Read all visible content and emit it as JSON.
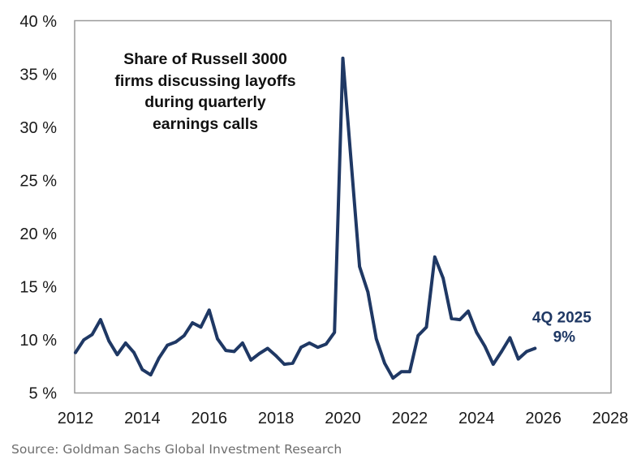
{
  "chart_data": {
    "type": "line",
    "title_lines": [
      "Share of Russell 3000",
      "firms discussing layoffs",
      "during quarterly",
      "earnings calls"
    ],
    "xlabel": "",
    "ylabel": "",
    "xlim": [
      2012,
      2028
    ],
    "ylim": [
      5,
      40
    ],
    "x_ticks": [
      "2012",
      "2014",
      "2016",
      "2018",
      "2020",
      "2022",
      "2024",
      "2026",
      "2028"
    ],
    "y_ticks": [
      "5 %",
      "10 %",
      "15 %",
      "20 %",
      "25 %",
      "30 %",
      "35 %",
      "40 %"
    ],
    "grid": false,
    "legend": "none",
    "line_color": "#1f3864",
    "series": [
      {
        "name": "Share of Russell 3000 firms discussing layoffs",
        "x_start": 2012.0,
        "x_step": 0.25,
        "values": [
          8.8,
          10.0,
          10.5,
          11.9,
          9.9,
          8.6,
          9.7,
          8.8,
          7.2,
          6.7,
          8.3,
          9.5,
          9.8,
          10.4,
          11.6,
          11.2,
          12.8,
          10.1,
          9.0,
          8.9,
          9.7,
          8.1,
          8.7,
          9.2,
          8.5,
          7.7,
          7.8,
          9.3,
          9.7,
          9.3,
          9.6,
          10.7,
          36.5,
          26.7,
          16.9,
          14.5,
          10.1,
          7.8,
          6.4,
          7.0,
          7.0,
          10.4,
          11.2,
          17.8,
          15.8,
          12.0,
          11.9,
          12.7,
          10.7,
          9.4,
          7.7,
          8.9,
          10.2,
          8.2,
          8.9,
          9.2
        ]
      }
    ],
    "annotation": {
      "line1": "4Q 2025",
      "line2": "9%",
      "x": 2025.75,
      "y": 9.2
    }
  },
  "source": "Source: Goldman Sachs Global Investment Research"
}
